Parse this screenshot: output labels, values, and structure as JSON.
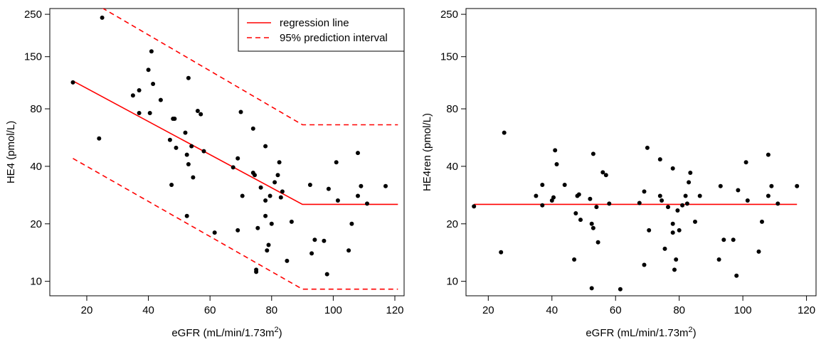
{
  "chart_data": [
    {
      "type": "scatter",
      "xlabel": "eGFR (mL/min/1.73m",
      "xlabel_sup": "2",
      "xlabel_end": ")",
      "ylabel": "HE4 (pmol/L)",
      "x_scale": "linear",
      "y_scale": "log",
      "xlim": [
        8,
        123
      ],
      "ylim": [
        8.4,
        268
      ],
      "x_ticks": [
        20,
        40,
        60,
        80,
        100,
        120
      ],
      "y_ticks": [
        10,
        20,
        40,
        80,
        150,
        250
      ],
      "grid": false,
      "legend": {
        "position": "top-right",
        "entries": [
          {
            "label": "regression line",
            "style": "solid",
            "color": "#ff0000"
          },
          {
            "label": "95% prediction interval",
            "style": "dashed",
            "color": "#ff0000"
          }
        ]
      },
      "lines": [
        {
          "style": "solid",
          "color": "#ff0000",
          "x": [
            15.5,
            90,
            121
          ],
          "y": [
            112,
            25.3,
            25.3
          ]
        },
        {
          "style": "dashed",
          "color": "#ff0000",
          "x": [
            25,
            90,
            121
          ],
          "y": [
            270,
            66,
            66
          ]
        },
        {
          "style": "dashed",
          "color": "#ff0000",
          "x": [
            15.5,
            90,
            121
          ],
          "y": [
            44,
            9.1,
            9.1
          ]
        }
      ],
      "points": {
        "color": "#000000",
        "x": [
          15.5,
          24,
          25,
          35,
          37,
          37,
          40,
          40.5,
          41,
          41.5,
          44,
          47,
          47.5,
          48,
          48.5,
          49,
          52,
          52.5,
          52.5,
          53,
          53,
          54,
          54.5,
          56,
          57,
          58,
          61.5,
          67.5,
          69,
          69,
          70,
          70.5,
          74,
          74,
          74.5,
          75,
          75,
          75.5,
          76.5,
          78,
          78,
          78,
          78.5,
          79,
          79.5,
          80,
          81,
          82,
          82.5,
          83,
          83.5,
          85,
          86.5,
          92.5,
          93,
          94,
          97,
          98,
          98.5,
          101,
          101.5,
          105,
          106,
          108,
          108,
          109,
          111,
          117
        ],
        "y": [
          110,
          56,
          240,
          94,
          76,
          100,
          128,
          76,
          160,
          108,
          89,
          55,
          32,
          71,
          71,
          50,
          60,
          22,
          46,
          116,
          41,
          51,
          35,
          78,
          75,
          48,
          18,
          39.5,
          44,
          18.5,
          77,
          28,
          63,
          37,
          36,
          11.5,
          11.2,
          19,
          31,
          51,
          26.5,
          22,
          14.5,
          15.5,
          28,
          20,
          33,
          36,
          42,
          27.5,
          29.5,
          12.8,
          20.5,
          32,
          14,
          16.5,
          16.3,
          10.9,
          30.5,
          42,
          26.5,
          14.5,
          20,
          28,
          47,
          31.5,
          25.5,
          31.5
        ]
      }
    },
    {
      "type": "scatter",
      "xlabel": "eGFR (mL/min/1.73m",
      "xlabel_sup": "2",
      "xlabel_end": ")",
      "ylabel": "HE4ren (pmol/L)",
      "x_scale": "linear",
      "y_scale": "log",
      "xlim": [
        13,
        123
      ],
      "ylim": [
        8.4,
        268
      ],
      "x_ticks": [
        20,
        40,
        60,
        80,
        100,
        120
      ],
      "y_ticks": [
        10,
        20,
        40,
        80,
        150,
        250
      ],
      "grid": false,
      "lines": [
        {
          "style": "solid",
          "color": "#ff0000",
          "x": [
            15.5,
            117
          ],
          "y": [
            25.3,
            25.3
          ]
        }
      ],
      "points": {
        "color": "#000000",
        "x": [
          15.5,
          24,
          25,
          35,
          37,
          37,
          40,
          40.5,
          41,
          41.5,
          44,
          47,
          47.5,
          48,
          48.5,
          49,
          52,
          52.5,
          52.5,
          53,
          53,
          54,
          54.5,
          56,
          57,
          58,
          61.5,
          67.5,
          69,
          69,
          70,
          70.5,
          74,
          74,
          74.5,
          75,
          75,
          75.5,
          76.5,
          78,
          78,
          78,
          78.5,
          79,
          79.5,
          80,
          81,
          82,
          82.5,
          83,
          83.5,
          85,
          86.5,
          92.5,
          93,
          94,
          97,
          98,
          98.5,
          101,
          101.5,
          105,
          106,
          108,
          108,
          109,
          111,
          117
        ],
        "y": [
          24.7,
          14.2,
          60,
          28,
          25,
          32,
          26.5,
          27.5,
          48.5,
          41,
          32,
          13,
          22.7,
          28,
          28.5,
          21,
          27,
          9.2,
          20,
          46.5,
          19,
          24.5,
          16,
          37.2,
          36,
          25.5,
          9.1,
          25.7,
          12.2,
          29.5,
          50,
          18.5,
          43.5,
          28,
          26.5,
          7.7,
          7.5,
          14.8,
          24.5,
          20,
          39,
          18,
          11.5,
          13,
          23.5,
          18.5,
          25,
          28,
          25.5,
          33,
          37,
          20.5,
          28,
          13,
          31.5,
          16.5,
          16.5,
          10.7,
          30,
          42,
          26.5,
          14.3,
          20.5,
          28,
          46,
          31.5,
          25.5,
          31.5
        ]
      }
    }
  ]
}
